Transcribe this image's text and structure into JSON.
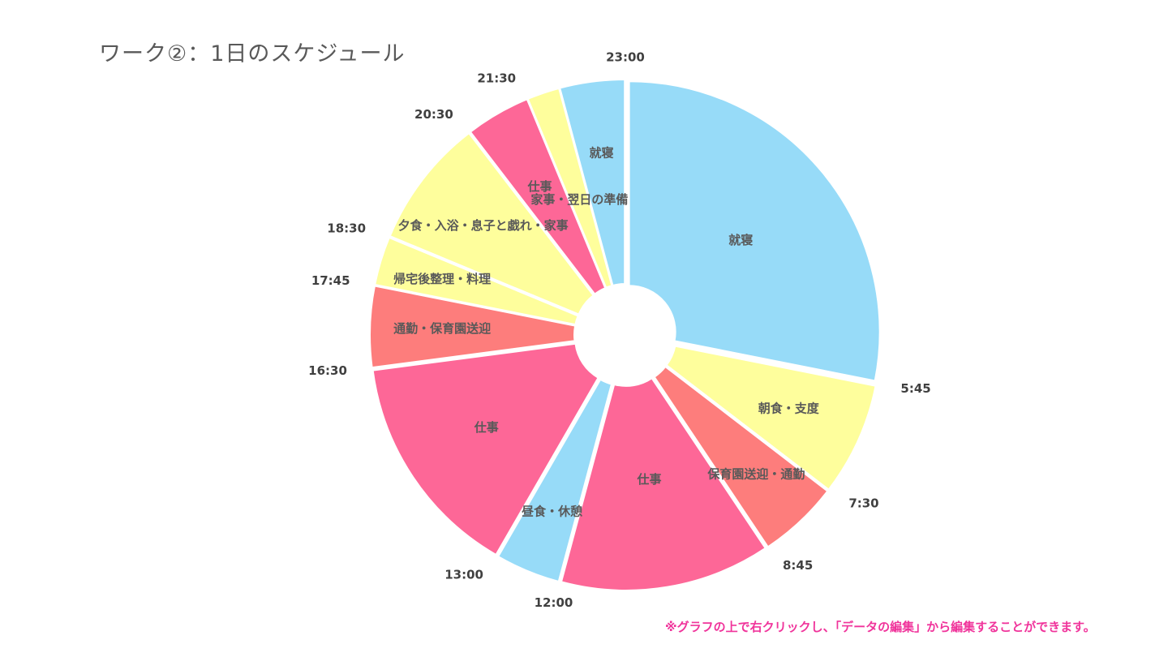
{
  "page": {
    "title": "ワーク②：1日のスケジュール",
    "note": "※グラフの上で右クリックし、「データの編集」から編集することができます。"
  },
  "chart_data": {
    "type": "pie",
    "variant": "doughnut",
    "title": "ワーク②：1日のスケジュール",
    "start_time": "23:00",
    "unit": "hours",
    "slices": [
      {
        "label": "就寝",
        "hours": 6.75,
        "color": "#97dbf8",
        "start": "23:00",
        "end": "5:45"
      },
      {
        "label": "朝食・支度",
        "hours": 1.75,
        "color": "#fefe9c",
        "start": "5:45",
        "end": "7:30"
      },
      {
        "label": "保育園送迎・通勤",
        "hours": 1.25,
        "color": "#fd7d7c",
        "start": "7:30",
        "end": "8:45"
      },
      {
        "label": "仕事",
        "hours": 3.25,
        "color": "#fd6797",
        "start": "8:45",
        "end": "12:00"
      },
      {
        "label": "昼食・休憩",
        "hours": 1,
        "color": "#97dbf8",
        "start": "12:00",
        "end": "13:00"
      },
      {
        "label": "仕事",
        "hours": 3.5,
        "color": "#fd6797",
        "start": "13:00",
        "end": "16:30"
      },
      {
        "label": "通勤・保育園送迎",
        "hours": 1.25,
        "color": "#fd7d7c",
        "start": "16:30",
        "end": "17:45"
      },
      {
        "label": "帰宅後整理・料理",
        "hours": 0.75,
        "color": "#fefe9c",
        "start": "17:45",
        "end": "18:30"
      },
      {
        "label": "夕食・入浴・息子と戯れ・家事",
        "hours": 2,
        "color": "#fefe9c",
        "start": "18:30",
        "end": "20:30"
      },
      {
        "label": "仕事",
        "hours": 1,
        "color": "#fd6797",
        "start": "20:30",
        "end": "21:30"
      },
      {
        "label": "家事・翌日の準備",
        "hours": 0.5,
        "color": "#fefe9c",
        "start": "21:30",
        "end": "22:00"
      },
      {
        "label": "就寝",
        "hours": 1,
        "color": "#97dbf8",
        "start": "22:00",
        "end": "23:00"
      }
    ],
    "time_labels": [
      "23:00",
      "5:45",
      "7:30",
      "8:45",
      "12:00",
      "13:00",
      "16:30",
      "17:45",
      "18:30",
      "20:30",
      "21:30"
    ]
  }
}
